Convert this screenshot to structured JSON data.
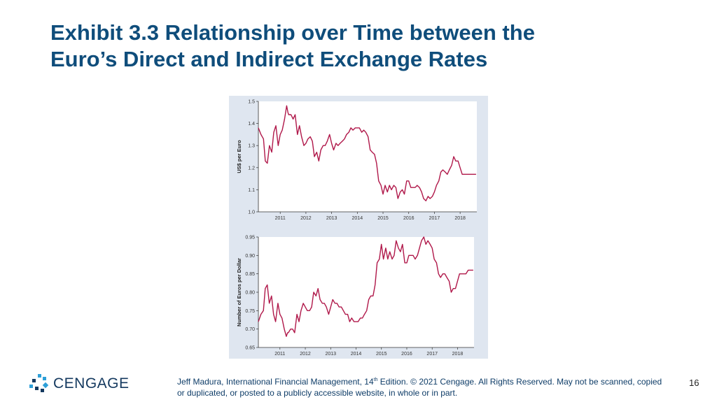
{
  "slide": {
    "title_line1": "Exhibit 3.3 Relationship over Time between the",
    "title_line2": "Euro’s Direct and Indirect Exchange Rates",
    "page_number": "16",
    "logo_text": "CENGAGE",
    "footer": {
      "part1": "Jeff Madura, International Financial Management, 14",
      "superscript": "th",
      "part2": " Edition. © 2021 Cengage. All Rights Reserved. May not be scanned, copied or duplicated, or posted to a publicly accessible website, in whole or in part."
    }
  },
  "colors": {
    "title": "#0f4d7b",
    "line": "#b0184a",
    "panel": "#dfe6f0"
  },
  "chart_data": [
    {
      "type": "line",
      "title": "",
      "xlabel": "",
      "ylabel": "US$ per Euro",
      "xlim": [
        2010.15,
        2018.65
      ],
      "ylim": [
        1.0,
        1.5
      ],
      "yticks": [
        1.0,
        1.1,
        1.2,
        1.3,
        1.4,
        1.5
      ],
      "ytick_labels": [
        "1.0",
        "1.1",
        "1.2",
        "1.3",
        "1.4",
        "1.5"
      ],
      "xticks": [
        2011,
        2012,
        2013,
        2014,
        2015,
        2016,
        2017,
        2018
      ],
      "xtick_labels": [
        "2011",
        "2012",
        "2013",
        "2014",
        "2015",
        "2016",
        "2017",
        "2018"
      ],
      "grid": false,
      "series": [
        {
          "x": [
            2010.15,
            2010.25,
            2010.35,
            2010.42,
            2010.5,
            2010.58,
            2010.67,
            2010.75,
            2010.83,
            2010.92,
            2011.0,
            2011.08,
            2011.17,
            2011.25,
            2011.3,
            2011.33,
            2011.42,
            2011.5,
            2011.58,
            2011.67,
            2011.75,
            2011.83,
            2011.92,
            2012.0,
            2012.08,
            2012.17,
            2012.25,
            2012.33,
            2012.42,
            2012.5,
            2012.58,
            2012.67,
            2012.75,
            2012.83,
            2012.92,
            2013.0,
            2013.08,
            2013.17,
            2013.25,
            2013.33,
            2013.42,
            2013.5,
            2013.58,
            2013.67,
            2013.75,
            2013.83,
            2013.92,
            2014.0,
            2014.08,
            2014.17,
            2014.25,
            2014.33,
            2014.42,
            2014.5,
            2014.58,
            2014.67,
            2014.75,
            2014.83,
            2014.92,
            2015.0,
            2015.08,
            2015.17,
            2015.25,
            2015.33,
            2015.42,
            2015.5,
            2015.58,
            2015.67,
            2015.75,
            2015.83,
            2015.92,
            2016.0,
            2016.08,
            2016.17,
            2016.25,
            2016.33,
            2016.42,
            2016.5,
            2016.58,
            2016.67,
            2016.75,
            2016.83,
            2016.92,
            2017.0,
            2017.08,
            2017.17,
            2017.25,
            2017.33,
            2017.42,
            2017.5,
            2017.58,
            2017.67,
            2017.75,
            2017.83,
            2017.92,
            2018.0,
            2018.08,
            2018.17,
            2018.25,
            2018.33,
            2018.42,
            2018.5,
            2018.58,
            2018.62
          ],
          "y": [
            1.38,
            1.35,
            1.33,
            1.23,
            1.22,
            1.3,
            1.27,
            1.36,
            1.39,
            1.3,
            1.35,
            1.37,
            1.42,
            1.48,
            1.45,
            1.44,
            1.44,
            1.42,
            1.44,
            1.35,
            1.39,
            1.34,
            1.3,
            1.31,
            1.33,
            1.34,
            1.32,
            1.25,
            1.27,
            1.23,
            1.28,
            1.3,
            1.3,
            1.32,
            1.35,
            1.31,
            1.28,
            1.31,
            1.3,
            1.31,
            1.32,
            1.33,
            1.35,
            1.36,
            1.38,
            1.37,
            1.38,
            1.38,
            1.38,
            1.36,
            1.37,
            1.36,
            1.34,
            1.28,
            1.27,
            1.26,
            1.22,
            1.14,
            1.12,
            1.08,
            1.12,
            1.09,
            1.12,
            1.1,
            1.12,
            1.11,
            1.06,
            1.09,
            1.1,
            1.08,
            1.14,
            1.14,
            1.11,
            1.11,
            1.11,
            1.12,
            1.11,
            1.09,
            1.06,
            1.05,
            1.07,
            1.06,
            1.07,
            1.09,
            1.12,
            1.14,
            1.18,
            1.19,
            1.18,
            1.17,
            1.19,
            1.21,
            1.25,
            1.23,
            1.23,
            1.2,
            1.17,
            1.17,
            1.17,
            1.17,
            1.17,
            1.17,
            1.17,
            1.17
          ]
        }
      ]
    },
    {
      "type": "line",
      "title": "",
      "xlabel": "",
      "ylabel": "Number of Euros per Dollar",
      "xlim": [
        2010.15,
        2018.65
      ],
      "ylim": [
        0.65,
        0.95
      ],
      "yticks": [
        0.65,
        0.7,
        0.75,
        0.8,
        0.85,
        0.9,
        0.95
      ],
      "ytick_labels": [
        "0.65",
        "0.70",
        "0.75",
        "0.80",
        "0.85",
        "0.90",
        "0.95"
      ],
      "xticks": [
        2011,
        2012,
        2013,
        2014,
        2015,
        2016,
        2017,
        2018
      ],
      "xtick_labels": [
        "2011",
        "2012",
        "2013",
        "2014",
        "2015",
        "2016",
        "2017",
        "2018"
      ],
      "grid": false,
      "series": [
        {
          "x": [
            2010.15,
            2010.25,
            2010.35,
            2010.42,
            2010.5,
            2010.58,
            2010.67,
            2010.75,
            2010.83,
            2010.92,
            2011.0,
            2011.08,
            2011.17,
            2011.25,
            2011.3,
            2011.33,
            2011.42,
            2011.5,
            2011.58,
            2011.67,
            2011.75,
            2011.83,
            2011.92,
            2012.0,
            2012.08,
            2012.17,
            2012.25,
            2012.33,
            2012.42,
            2012.5,
            2012.58,
            2012.67,
            2012.75,
            2012.83,
            2012.92,
            2013.0,
            2013.08,
            2013.17,
            2013.25,
            2013.33,
            2013.42,
            2013.5,
            2013.58,
            2013.67,
            2013.75,
            2013.83,
            2013.92,
            2014.0,
            2014.08,
            2014.17,
            2014.25,
            2014.33,
            2014.42,
            2014.5,
            2014.58,
            2014.67,
            2014.75,
            2014.83,
            2014.92,
            2015.0,
            2015.08,
            2015.17,
            2015.25,
            2015.33,
            2015.42,
            2015.5,
            2015.58,
            2015.67,
            2015.75,
            2015.83,
            2015.92,
            2016.0,
            2016.08,
            2016.17,
            2016.25,
            2016.33,
            2016.42,
            2016.5,
            2016.58,
            2016.67,
            2016.75,
            2016.83,
            2016.92,
            2017.0,
            2017.08,
            2017.17,
            2017.25,
            2017.33,
            2017.42,
            2017.5,
            2017.58,
            2017.67,
            2017.75,
            2017.83,
            2017.92,
            2018.0,
            2018.08,
            2018.17,
            2018.25,
            2018.33,
            2018.42,
            2018.5,
            2018.58,
            2018.62
          ],
          "y": [
            0.72,
            0.74,
            0.75,
            0.81,
            0.82,
            0.77,
            0.79,
            0.74,
            0.72,
            0.77,
            0.74,
            0.73,
            0.7,
            0.68,
            0.69,
            0.69,
            0.7,
            0.7,
            0.69,
            0.74,
            0.72,
            0.75,
            0.77,
            0.76,
            0.75,
            0.75,
            0.76,
            0.8,
            0.79,
            0.81,
            0.78,
            0.77,
            0.77,
            0.76,
            0.74,
            0.76,
            0.78,
            0.77,
            0.77,
            0.76,
            0.76,
            0.75,
            0.74,
            0.74,
            0.72,
            0.73,
            0.72,
            0.72,
            0.72,
            0.73,
            0.73,
            0.74,
            0.75,
            0.78,
            0.79,
            0.79,
            0.82,
            0.88,
            0.89,
            0.93,
            0.89,
            0.92,
            0.89,
            0.91,
            0.89,
            0.9,
            0.94,
            0.92,
            0.91,
            0.93,
            0.88,
            0.88,
            0.9,
            0.9,
            0.9,
            0.89,
            0.9,
            0.92,
            0.94,
            0.95,
            0.93,
            0.94,
            0.93,
            0.92,
            0.89,
            0.88,
            0.85,
            0.84,
            0.85,
            0.85,
            0.84,
            0.83,
            0.8,
            0.81,
            0.81,
            0.83,
            0.85,
            0.85,
            0.85,
            0.85,
            0.86,
            0.86,
            0.86,
            0.86
          ]
        }
      ]
    }
  ]
}
